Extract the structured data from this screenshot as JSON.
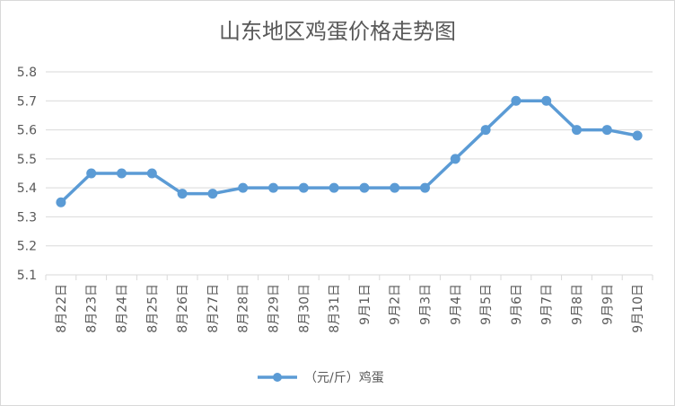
{
  "chart_data": {
    "type": "line",
    "title": "山东地区鸡蛋价格走势图",
    "categories": [
      "8月22日",
      "8月23日",
      "8月24日",
      "8月25日",
      "8月26日",
      "8月27日",
      "8月28日",
      "8月29日",
      "8月30日",
      "8月31日",
      "9月1日",
      "9月2日",
      "9月3日",
      "9月4日",
      "9月5日",
      "9月6日",
      "9月7日",
      "9月8日",
      "9月9日",
      "9月10日"
    ],
    "series": [
      {
        "name": "（元/斤）鸡蛋",
        "values": [
          5.35,
          5.45,
          5.45,
          5.45,
          5.38,
          5.38,
          5.4,
          5.4,
          5.4,
          5.4,
          5.4,
          5.4,
          5.4,
          5.5,
          5.6,
          5.7,
          5.7,
          5.6,
          5.6,
          5.58
        ]
      }
    ],
    "ylim": [
      5.1,
      5.8
    ],
    "yticks": [
      "5.1",
      "5.2",
      "5.3",
      "5.4",
      "5.5",
      "5.6",
      "5.7",
      "5.8"
    ],
    "grid": true,
    "legend": "bottom",
    "line_color": "#5b9bd5",
    "grid_color": "#d9d9d9",
    "text_color": "#595959"
  }
}
